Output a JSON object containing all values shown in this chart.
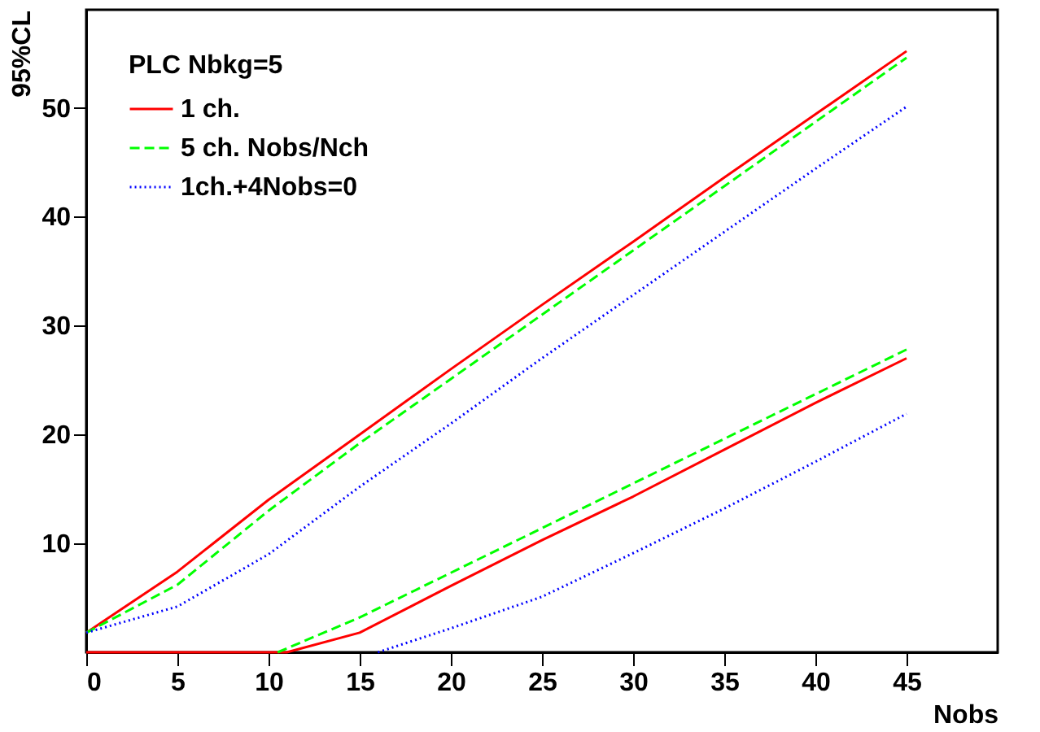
{
  "chart_data": {
    "type": "line",
    "xlabel": "Nobs",
    "ylabel": "95%CL",
    "legend_title": "PLC Nbkg=5",
    "legend": "top left",
    "grid": false,
    "marker": "none",
    "xlim": [
      0,
      50
    ],
    "xticks": [
      0,
      5,
      10,
      15,
      20,
      25,
      30,
      35,
      40,
      45
    ],
    "ylim": [
      0,
      59
    ],
    "yticks": [
      10,
      20,
      30,
      40,
      50
    ],
    "series": [
      {
        "name": "1 ch.",
        "color": "#ff0000",
        "line_style": "solid",
        "x": [
          0,
          5,
          10,
          15,
          20,
          25,
          30,
          35,
          40,
          45
        ],
        "values": [
          1.8,
          7.4,
          14,
          20,
          26,
          31.9,
          37.7,
          43.6,
          49.4,
          55.2
        ]
      },
      {
        "name": "5 ch. Nobs/Nch",
        "color": "#00ff00",
        "line_style": "dashed",
        "x": [
          0,
          5,
          10,
          15,
          20,
          25,
          30,
          35,
          40,
          45
        ],
        "values": [
          1.8,
          6.2,
          13,
          19.2,
          25.1,
          31,
          36.9,
          42.8,
          48.7,
          54.6
        ]
      },
      {
        "name": "1ch.+4Nobs=0",
        "color": "#0000ff",
        "line_style": "dotted",
        "x": [
          0,
          5,
          10,
          15,
          20,
          25,
          30,
          35,
          40,
          45
        ],
        "values": [
          1.8,
          4.2,
          9,
          15.2,
          21,
          27,
          32.8,
          38.6,
          44.4,
          50.1
        ]
      },
      {
        "color": "#ff0000",
        "line_style": "solid",
        "x": [
          0,
          11,
          15,
          20,
          25,
          30,
          35,
          40,
          45
        ],
        "values": [
          0,
          0,
          1.8,
          6.1,
          10.3,
          14.3,
          18.6,
          22.9,
          27
        ]
      },
      {
        "color": "#00ff00",
        "line_style": "dashed",
        "x": [
          10.5,
          15,
          20,
          25,
          30,
          35,
          40,
          45
        ],
        "values": [
          0,
          3.2,
          7.3,
          11.4,
          15.5,
          19.6,
          23.7,
          27.8
        ]
      },
      {
        "color": "#0000ff",
        "line_style": "dotted",
        "x": [
          16,
          20,
          25,
          30,
          35,
          40,
          45
        ],
        "values": [
          0,
          2.2,
          5.1,
          9.1,
          13.2,
          17.5,
          21.9
        ]
      }
    ]
  }
}
